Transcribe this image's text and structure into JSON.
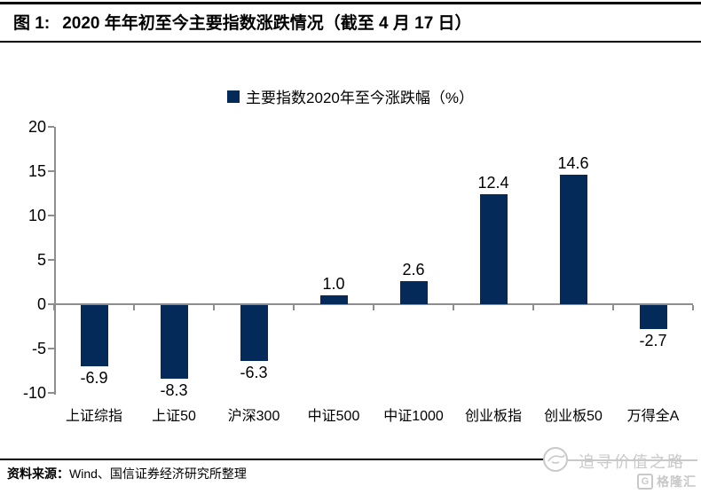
{
  "header": {
    "figure_label": "图 1:",
    "title": "2020 年年初至今主要指数涨跌情况（截至 4 月 17 日）"
  },
  "legend": {
    "label": "主要指数2020年至今涨跌幅（%）"
  },
  "chart_data": {
    "type": "bar",
    "title": "主要指数2020年至今涨跌幅（%）",
    "categories": [
      "上证综指",
      "上证50",
      "沪深300",
      "中证500",
      "中证1000",
      "创业板指",
      "创业板50",
      "万得全A"
    ],
    "values": [
      -6.9,
      -8.3,
      -6.3,
      1.0,
      2.6,
      12.4,
      14.6,
      -2.7
    ],
    "yticks": [
      20,
      15,
      10,
      5,
      0,
      -5,
      -10
    ],
    "ylim": [
      -10,
      20
    ],
    "grid": false,
    "legend_position": "top-center",
    "value_labels": "one-decimal"
  },
  "footer": {
    "source_prefix": "资料来源：",
    "source_text": "Wind、国信证券经济研究所整理"
  },
  "watermark": {
    "slogan": "追寻价值之路",
    "brand_initial": "G",
    "brand": "格隆汇"
  },
  "colors": {
    "bar": "#042A5A",
    "axis": "#8E8E8E",
    "text": "#000000",
    "rule": "#000000",
    "watermark": "#C9C9C9"
  }
}
